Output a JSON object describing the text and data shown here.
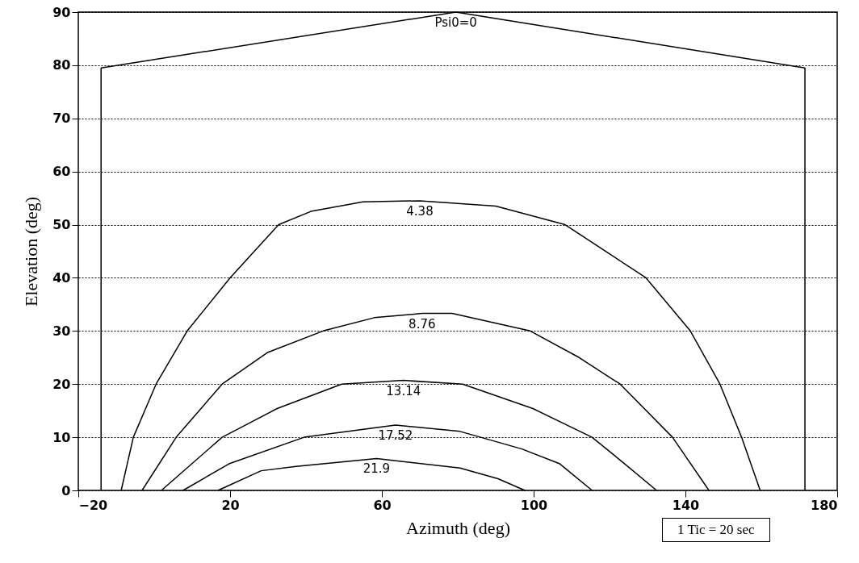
{
  "chart_data": {
    "type": "line",
    "xlabel": "Azimuth (deg)",
    "ylabel": "Elevation (deg)",
    "xlim": [
      -20,
      180
    ],
    "xticks": [
      -20,
      20,
      60,
      100,
      140,
      180
    ],
    "ylim": [
      0,
      90
    ],
    "yticks": [
      0,
      10,
      20,
      30,
      40,
      50,
      60,
      70,
      80,
      90
    ],
    "grid": "y",
    "annotations": [
      "1 Tic = 20 sec"
    ],
    "series": [
      {
        "name": "Psi0=0",
        "color": "#000000",
        "x": [
          -14,
          -14,
          79.5,
          171.5,
          171.5
        ],
        "values": [
          0,
          79.5,
          90,
          79.5,
          0
        ]
      },
      {
        "name": "4.38",
        "color": "#000000",
        "x": [
          -8.7,
          -5.5,
          0.5,
          8.7,
          20,
          32.8,
          41.3,
          55,
          70,
          90,
          108.3,
          129.6,
          141.3,
          149.1,
          154.8,
          159.7
        ],
        "values": [
          0,
          10,
          20,
          30,
          40,
          50,
          52.5,
          54.3,
          54.5,
          53.5,
          50,
          40,
          30,
          20,
          10,
          0
        ]
      },
      {
        "name": "8.76",
        "color": "#000000",
        "x": [
          -3.2,
          5.8,
          17.9,
          30,
          44.5,
          58,
          70.6,
          78.5,
          99.1,
          112,
          122.8,
          136.6,
          146.2
        ],
        "values": [
          0,
          10,
          20,
          26,
          30,
          32.5,
          33.3,
          33.3,
          30,
          25,
          20,
          10,
          0
        ]
      },
      {
        "name": "13.14",
        "color": "#000000",
        "x": [
          1.9,
          17.9,
          32.4,
          49.4,
          65.7,
          81.3,
          99.8,
          115.4,
          124,
          132.4
        ],
        "values": [
          0,
          10,
          15.4,
          20,
          20.7,
          20,
          15.4,
          10,
          5,
          0
        ]
      },
      {
        "name": "17.52",
        "color": "#000000",
        "x": [
          7.6,
          19.7,
          39.5,
          63.6,
          80.6,
          96.9,
          106.9,
          115.4
        ],
        "values": [
          0,
          5,
          10,
          12.3,
          11.1,
          7.8,
          5,
          0
        ]
      },
      {
        "name": "21.9",
        "color": "#000000",
        "x": [
          16.8,
          28.2,
          37.4,
          58.6,
          80.6,
          90.6,
          97.7
        ],
        "values": [
          0,
          3.7,
          4.5,
          6,
          4.2,
          2.2,
          0
        ]
      }
    ]
  }
}
